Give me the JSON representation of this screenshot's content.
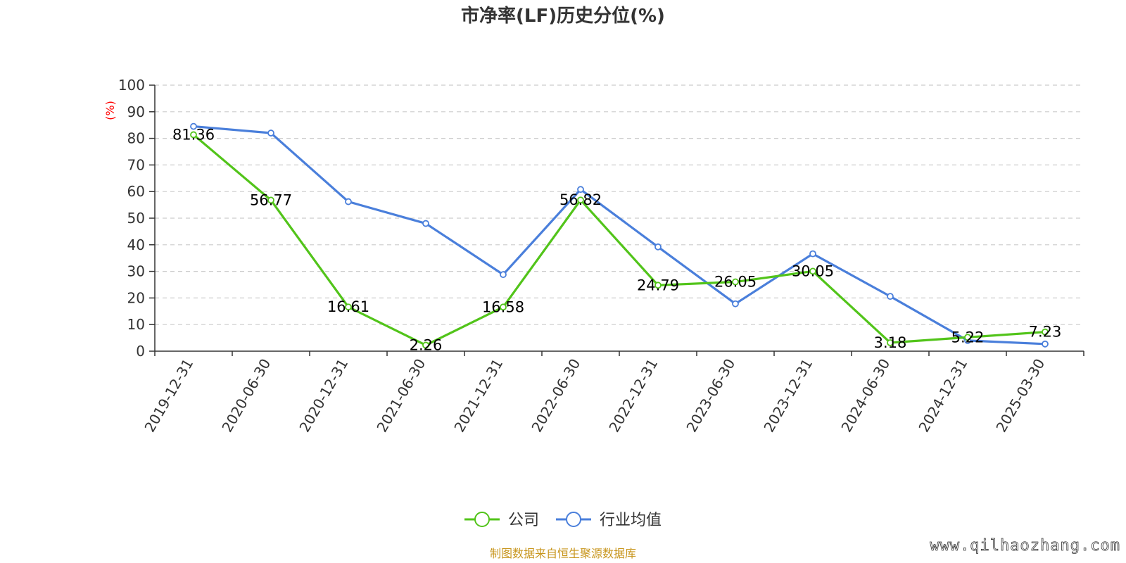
{
  "colors": {
    "company": "#52c41a",
    "industry": "#4a7fdb",
    "axis": "#333333",
    "grid": "#cccccc",
    "unit": "#ff0000",
    "source": "#c8961e"
  },
  "chart_data": {
    "type": "line",
    "title": "市净率(LF)历史分位(%)",
    "ylabel": "(%)",
    "xlabel": "",
    "ylim": [
      0,
      100
    ],
    "yticks": [
      0,
      10,
      20,
      30,
      40,
      50,
      60,
      70,
      80,
      90,
      100
    ],
    "grid": true,
    "legend_position": "bottom-center",
    "categories": [
      "2019-12-31",
      "2020-06-30",
      "2020-12-31",
      "2021-06-30",
      "2021-12-31",
      "2022-06-30",
      "2022-12-31",
      "2023-06-30",
      "2023-12-31",
      "2024-06-30",
      "2024-12-31",
      "2025-03-30"
    ],
    "series": [
      {
        "name": "公司",
        "color_key": "company",
        "values": [
          81.36,
          56.77,
          16.61,
          2.26,
          16.58,
          56.82,
          24.79,
          26.05,
          30.05,
          3.18,
          5.22,
          7.23
        ],
        "data_labels": [
          "81.36",
          "56.77",
          "16.61",
          "2.26",
          "16.58",
          "56.82",
          "24.79",
          "26.05",
          "30.05",
          "3.18",
          "5.22",
          "7.23"
        ]
      },
      {
        "name": "行业均值",
        "color_key": "industry",
        "values": [
          84.5,
          82.0,
          56.2,
          48.0,
          28.8,
          60.8,
          39.2,
          17.8,
          36.6,
          20.6,
          4.0,
          2.7
        ]
      }
    ]
  },
  "source_note": "制图数据来自恒生聚源数据库",
  "watermark": "www.qilhaozhang.com"
}
